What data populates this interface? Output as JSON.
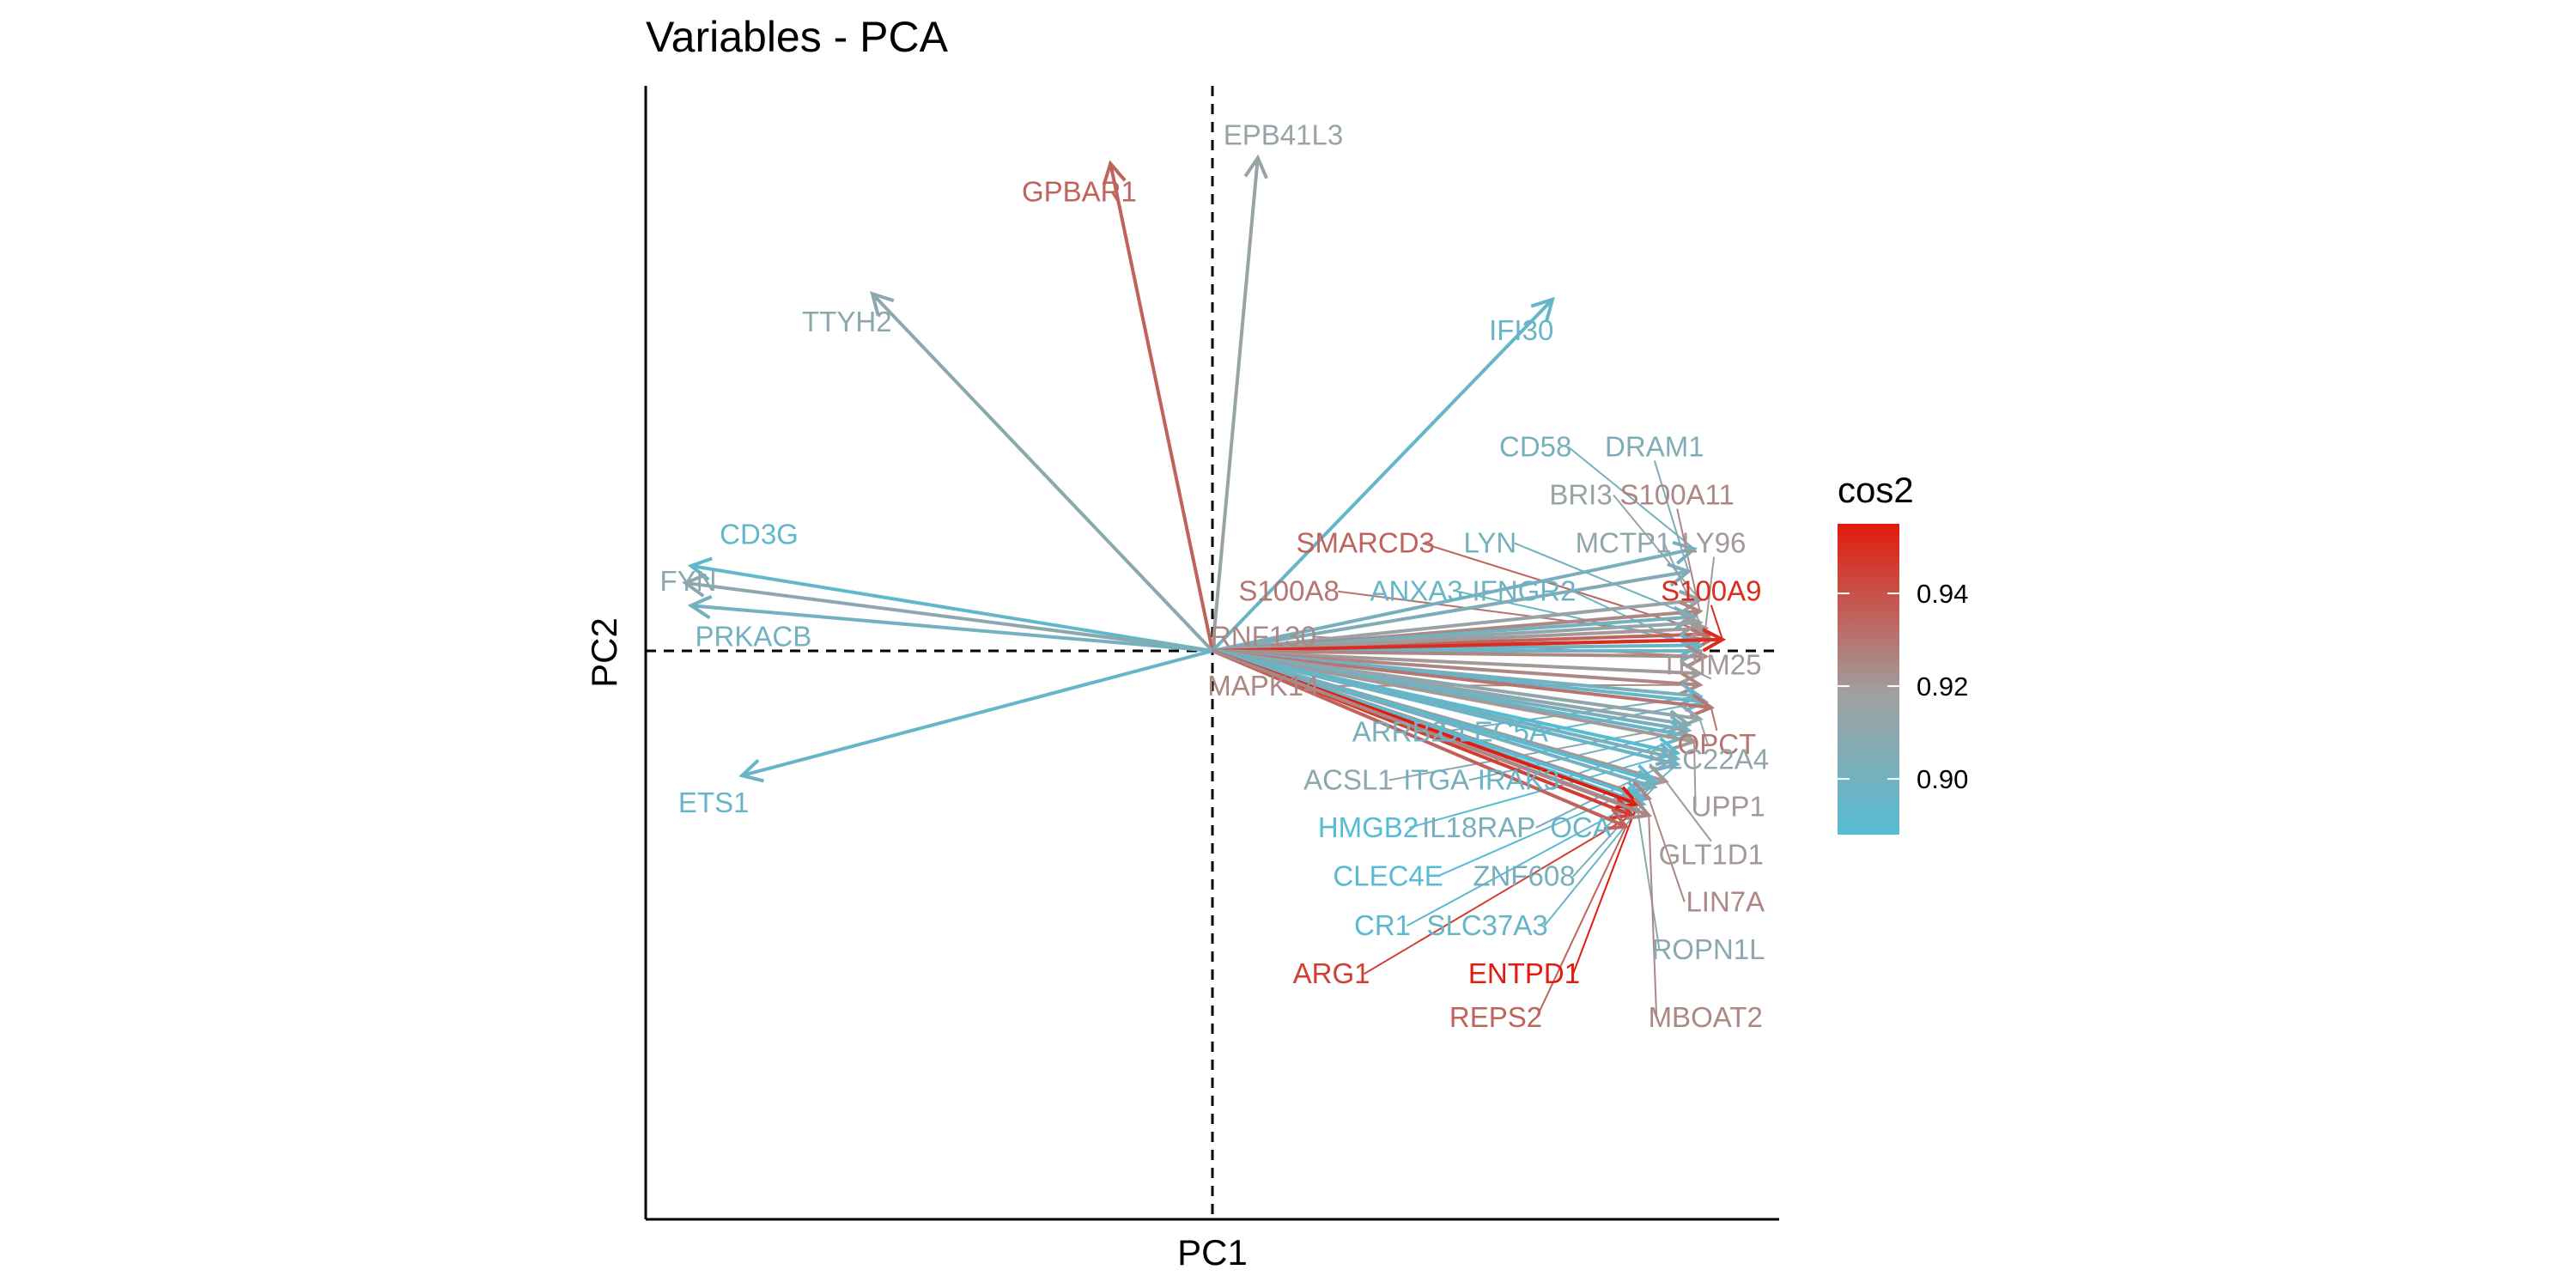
{
  "chart_data": {
    "type": "scatter",
    "title": "Variables - PCA",
    "xlabel": "PC1",
    "ylabel": "PC2",
    "xlim": [
      -1.0,
      1.0
    ],
    "ylim": [
      -1.0,
      1.0
    ],
    "reference_lines": {
      "x": 0,
      "y": 0,
      "style": "dashed"
    },
    "legend": {
      "title": "cos2",
      "position": "right",
      "range": [
        0.888,
        0.955
      ],
      "ticks": [
        0.9,
        0.92,
        0.94
      ],
      "tick_labels": [
        "0.90",
        "0.92",
        "0.94"
      ],
      "color_low": "#56bcd4",
      "color_mid": "#a0a0a0",
      "color_high": "#e31a0c"
    },
    "variables": [
      {
        "name": "EPB41L3",
        "x": 0.08,
        "y": 0.87,
        "cos2": 0.915,
        "label": [
          0.125,
          0.91
        ],
        "leader": false
      },
      {
        "name": "GPBAR1",
        "x": -0.18,
        "y": 0.86,
        "cos2": 0.935,
        "label": [
          -0.235,
          0.81
        ],
        "leader": false
      },
      {
        "name": "TTYH2",
        "x": -0.6,
        "y": 0.63,
        "cos2": 0.91,
        "label": [
          -0.645,
          0.58
        ],
        "leader": false
      },
      {
        "name": "IFI30",
        "x": 0.6,
        "y": 0.62,
        "cos2": 0.895,
        "label": [
          0.545,
          0.565
        ],
        "leader": false
      },
      {
        "name": "CD3G",
        "x": -0.92,
        "y": 0.15,
        "cos2": 0.892,
        "label": [
          -0.8,
          0.205
        ],
        "leader": false
      },
      {
        "name": "FYN",
        "x": -0.93,
        "y": 0.12,
        "cos2": 0.91,
        "label": [
          -0.925,
          0.123
        ],
        "leader": false
      },
      {
        "name": "PRKACB",
        "x": -0.92,
        "y": 0.08,
        "cos2": 0.9,
        "label": [
          -0.81,
          0.025
        ],
        "leader": false
      },
      {
        "name": "ETS1",
        "x": -0.83,
        "y": -0.22,
        "cos2": 0.895,
        "label": [
          -0.88,
          -0.268
        ],
        "leader": false
      },
      {
        "name": "CD58",
        "x": 0.85,
        "y": 0.18,
        "cos2": 0.902,
        "label": [
          0.57,
          0.36
        ],
        "leader": true
      },
      {
        "name": "DRAM1",
        "x": 0.84,
        "y": 0.14,
        "cos2": 0.905,
        "label": [
          0.78,
          0.36
        ],
        "leader": true
      },
      {
        "name": "BRI3",
        "x": 0.86,
        "y": 0.09,
        "cos2": 0.915,
        "label": [
          0.65,
          0.275
        ],
        "leader": true
      },
      {
        "name": "S100A11",
        "x": 0.86,
        "y": 0.07,
        "cos2": 0.925,
        "label": [
          0.82,
          0.275
        ],
        "leader": true
      },
      {
        "name": "SMARCD3",
        "x": 0.88,
        "y": 0.03,
        "cos2": 0.935,
        "label": [
          0.27,
          0.19
        ],
        "leader": true
      },
      {
        "name": "LYN",
        "x": 0.85,
        "y": 0.06,
        "cos2": 0.9,
        "label": [
          0.49,
          0.19
        ],
        "leader": true
      },
      {
        "name": "MCTP1",
        "x": 0.86,
        "y": 0.05,
        "cos2": 0.912,
        "label": [
          0.725,
          0.19
        ],
        "leader": true
      },
      {
        "name": "LY96",
        "x": 0.87,
        "y": 0.04,
        "cos2": 0.92,
        "label": [
          0.885,
          0.19
        ],
        "leader": true
      },
      {
        "name": "S100A8",
        "x": 0.88,
        "y": 0.02,
        "cos2": 0.93,
        "label": [
          0.135,
          0.105
        ],
        "leader": true
      },
      {
        "name": "ANXA3",
        "x": 0.86,
        "y": 0.01,
        "cos2": 0.895,
        "label": [
          0.36,
          0.105
        ],
        "leader": true
      },
      {
        "name": "IFNGR2",
        "x": 0.86,
        "y": 0.0,
        "cos2": 0.898,
        "label": [
          0.55,
          0.105
        ],
        "leader": true
      },
      {
        "name": "S100A9",
        "x": 0.9,
        "y": 0.02,
        "cos2": 0.95,
        "label": [
          0.88,
          0.105
        ],
        "leader": true
      },
      {
        "name": "RNF130",
        "x": 0.87,
        "y": -0.01,
        "cos2": 0.925,
        "label": [
          0.09,
          0.025
        ],
        "leader": true
      },
      {
        "name": "TRIM25",
        "x": 0.86,
        "y": -0.04,
        "cos2": 0.92,
        "label": [
          0.88,
          -0.025
        ],
        "leader": true
      },
      {
        "name": "MAPK14",
        "x": 0.86,
        "y": -0.06,
        "cos2": 0.925,
        "label": [
          0.09,
          -0.062
        ],
        "leader": true
      },
      {
        "name": "ARRB2",
        "x": 0.86,
        "y": -0.08,
        "cos2": 0.902,
        "label": [
          0.33,
          -0.143
        ],
        "leader": true
      },
      {
        "name": "CLEC5A",
        "x": 0.87,
        "y": -0.09,
        "cos2": 0.895,
        "label": [
          0.495,
          -0.143
        ],
        "leader": true
      },
      {
        "name": "OPCT",
        "x": 0.88,
        "y": -0.1,
        "cos2": 0.93,
        "label": [
          0.89,
          -0.165
        ],
        "leader": true
      },
      {
        "name": "SLC22A4",
        "x": 0.86,
        "y": -0.12,
        "cos2": 0.912,
        "label": [
          0.875,
          -0.192
        ],
        "leader": true
      },
      {
        "name": "ACSL1",
        "x": 0.84,
        "y": -0.13,
        "cos2": 0.91,
        "label": [
          0.24,
          -0.228
        ],
        "leader": true
      },
      {
        "name": "ITGA",
        "x": 0.84,
        "y": -0.14,
        "cos2": 0.902,
        "label": [
          0.395,
          -0.228
        ],
        "leader": true
      },
      {
        "name": "IRAK3",
        "x": 0.84,
        "y": -0.15,
        "cos2": 0.895,
        "label": [
          0.54,
          -0.228
        ],
        "leader": true
      },
      {
        "name": "UPP1",
        "x": 0.85,
        "y": -0.16,
        "cos2": 0.92,
        "label": [
          0.91,
          -0.275
        ],
        "leader": true
      },
      {
        "name": "HMGB2",
        "x": 0.82,
        "y": -0.18,
        "cos2": 0.888,
        "label": [
          0.275,
          -0.312
        ],
        "leader": true
      },
      {
        "name": "IL18RAP",
        "x": 0.82,
        "y": -0.19,
        "cos2": 0.902,
        "label": [
          0.47,
          -0.312
        ],
        "leader": true
      },
      {
        "name": "OCA",
        "x": 0.82,
        "y": -0.2,
        "cos2": 0.895,
        "label": [
          0.65,
          -0.312
        ],
        "leader": true
      },
      {
        "name": "GLT1D1",
        "x": 0.8,
        "y": -0.23,
        "cos2": 0.92,
        "label": [
          0.88,
          -0.36
        ],
        "leader": true
      },
      {
        "name": "CLEC4E",
        "x": 0.78,
        "y": -0.23,
        "cos2": 0.888,
        "label": [
          0.31,
          -0.398
        ],
        "leader": true
      },
      {
        "name": "ZNF608",
        "x": 0.78,
        "y": -0.24,
        "cos2": 0.902,
        "label": [
          0.55,
          -0.398
        ],
        "leader": true
      },
      {
        "name": "LIN7A",
        "x": 0.77,
        "y": -0.26,
        "cos2": 0.925,
        "label": [
          0.905,
          -0.443
        ],
        "leader": true
      },
      {
        "name": "CR1",
        "x": 0.76,
        "y": -0.26,
        "cos2": 0.89,
        "label": [
          0.3,
          -0.485
        ],
        "leader": true
      },
      {
        "name": "SLC37A3",
        "x": 0.76,
        "y": -0.27,
        "cos2": 0.895,
        "label": [
          0.485,
          -0.485
        ],
        "leader": true
      },
      {
        "name": "ROPN1L",
        "x": 0.75,
        "y": -0.28,
        "cos2": 0.91,
        "label": [
          0.875,
          -0.527
        ],
        "leader": true
      },
      {
        "name": "ARG1",
        "x": 0.74,
        "y": -0.29,
        "cos2": 0.945,
        "label": [
          0.21,
          -0.57
        ],
        "leader": true
      },
      {
        "name": "ENTPD1",
        "x": 0.75,
        "y": -0.27,
        "cos2": 0.955,
        "label": [
          0.55,
          -0.57
        ],
        "leader": true
      },
      {
        "name": "REPS2",
        "x": 0.73,
        "y": -0.31,
        "cos2": 0.935,
        "label": [
          0.5,
          -0.647
        ],
        "leader": true
      },
      {
        "name": "MBOAT2",
        "x": 0.77,
        "y": -0.29,
        "cos2": 0.925,
        "label": [
          0.87,
          -0.647
        ],
        "leader": true
      }
    ]
  }
}
